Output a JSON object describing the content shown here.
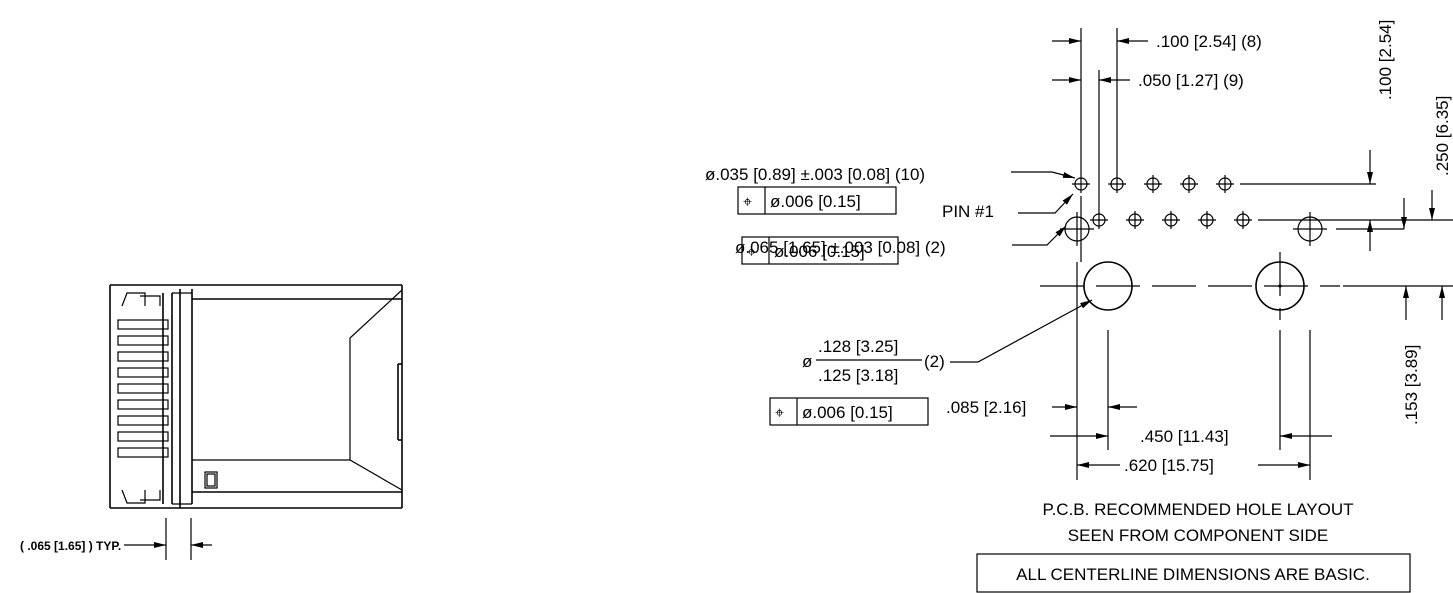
{
  "side_view": {
    "typ_dim": "( .065 [1.65] ) TYP."
  },
  "layout": {
    "dim_pitch_100": ".100 [2.54] (8)",
    "dim_stagger_050": ".050 [1.27] (9)",
    "dim_vert_100": ".100 [2.54]",
    "dim_vert_250": ".250 [6.35]",
    "small_hole_callout": "ø.035 [0.89] ±.003 [0.08] (10)",
    "small_hole_tol": "ø.006 [0.15]",
    "pin1": "PIN  #1",
    "mid_hole_callout": "ø.065 [1.65] ±.003 [0.08] (2)",
    "mid_hole_tol": "ø.006 [0.15]",
    "large_hole_dia_symbol": "ø",
    "large_hole_upper": ".128 [3.25]",
    "large_hole_lower": ".125 [3.18]",
    "large_hole_qty": "(2)",
    "large_hole_tol": "ø.006 [0.15]",
    "dim_085": ".085 [2.16]",
    "dim_450": ".450 [11.43]",
    "dim_620": ".620 [15.75]",
    "dim_153": ".153 [3.89]",
    "title_line1": "P.C.B. RECOMMENDED HOLE LAYOUT",
    "title_line2": "SEEN FROM COMPONENT SIDE",
    "note": "ALL CENTERLINE DIMENSIONS ARE BASIC."
  },
  "fcf_symbol": "position-icon"
}
